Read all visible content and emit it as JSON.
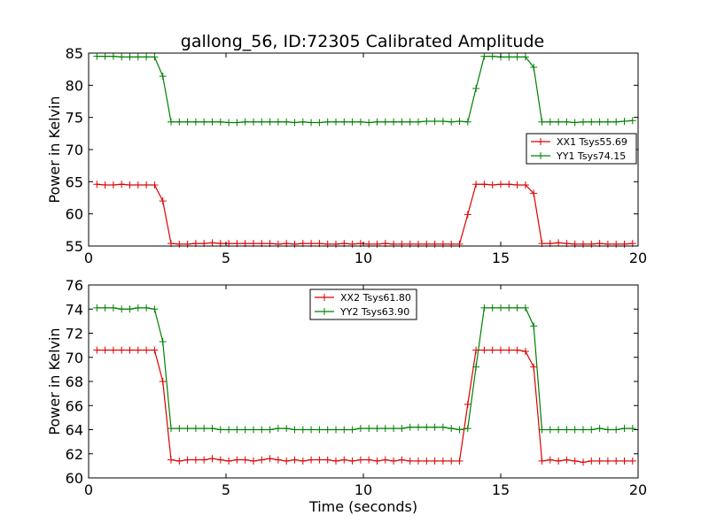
{
  "figure": {
    "title": "gallong_56, ID:72305 Calibrated Amplitude"
  },
  "chart_data": [
    {
      "type": "line",
      "title": "gallong_56, ID:72305 Calibrated Amplitude",
      "xlabel": "",
      "ylabel": "Power in Kelvin",
      "xlim": [
        0,
        20
      ],
      "ylim": [
        55,
        85
      ],
      "x_ticks": [
        "0",
        "5",
        "10",
        "15",
        "20"
      ],
      "y_ticks": [
        "55",
        "60",
        "65",
        "70",
        "75",
        "80",
        "85"
      ],
      "grid": false,
      "legend_position": "center-right",
      "x": [
        0.3,
        0.6,
        0.9,
        1.2,
        1.5,
        1.8,
        2.1,
        2.4,
        2.7,
        3.0,
        3.3,
        3.6,
        3.9,
        4.2,
        4.5,
        4.8,
        5.1,
        5.4,
        5.7,
        6.0,
        6.3,
        6.6,
        6.9,
        7.2,
        7.5,
        7.8,
        8.1,
        8.4,
        8.7,
        9.0,
        9.3,
        9.6,
        9.9,
        10.2,
        10.5,
        10.8,
        11.1,
        11.4,
        11.7,
        12.0,
        12.3,
        12.6,
        12.9,
        13.2,
        13.5,
        13.8,
        14.1,
        14.4,
        14.7,
        15.0,
        15.3,
        15.6,
        15.9,
        16.2,
        16.5,
        16.8,
        17.1,
        17.4,
        17.7,
        18.0,
        18.3,
        18.6,
        18.9,
        19.2,
        19.5,
        19.8
      ],
      "series": [
        {
          "name": "XX1 Tsys55.69",
          "color": "#dd0000",
          "values": [
            64.6,
            64.5,
            64.5,
            64.6,
            64.5,
            64.5,
            64.5,
            64.5,
            62.0,
            55.4,
            55.3,
            55.3,
            55.4,
            55.4,
            55.5,
            55.4,
            55.4,
            55.4,
            55.4,
            55.4,
            55.4,
            55.4,
            55.3,
            55.4,
            55.3,
            55.4,
            55.4,
            55.4,
            55.3,
            55.3,
            55.4,
            55.3,
            55.4,
            55.3,
            55.3,
            55.4,
            55.3,
            55.3,
            55.3,
            55.3,
            55.3,
            55.3,
            55.3,
            55.3,
            55.3,
            59.9,
            64.6,
            64.6,
            64.5,
            64.6,
            64.6,
            64.5,
            64.5,
            63.2,
            55.4,
            55.4,
            55.5,
            55.4,
            55.3,
            55.3,
            55.3,
            55.4,
            55.3,
            55.3,
            55.3,
            55.4
          ]
        },
        {
          "name": "YY1 Tsys74.15",
          "color": "#008000",
          "values": [
            84.5,
            84.5,
            84.5,
            84.4,
            84.4,
            84.4,
            84.4,
            84.4,
            81.4,
            74.3,
            74.3,
            74.3,
            74.3,
            74.3,
            74.3,
            74.3,
            74.2,
            74.2,
            74.3,
            74.3,
            74.3,
            74.3,
            74.3,
            74.3,
            74.2,
            74.3,
            74.2,
            74.2,
            74.3,
            74.3,
            74.3,
            74.3,
            74.3,
            74.2,
            74.3,
            74.3,
            74.3,
            74.3,
            74.3,
            74.3,
            74.4,
            74.4,
            74.4,
            74.3,
            74.4,
            74.3,
            79.5,
            84.5,
            84.5,
            84.4,
            84.4,
            84.4,
            84.4,
            82.8,
            74.3,
            74.3,
            74.3,
            74.3,
            74.2,
            74.3,
            74.3,
            74.3,
            74.3,
            74.3,
            74.4,
            74.5
          ]
        }
      ]
    },
    {
      "type": "line",
      "title": "",
      "xlabel": "Time (seconds)",
      "ylabel": "Power in Kelvin",
      "xlim": [
        0,
        20
      ],
      "ylim": [
        60,
        76
      ],
      "x_ticks": [
        "0",
        "5",
        "10",
        "15",
        "20"
      ],
      "y_ticks": [
        "60",
        "62",
        "64",
        "66",
        "68",
        "70",
        "72",
        "74",
        "76"
      ],
      "grid": false,
      "legend_position": "top-center",
      "x": [
        0.3,
        0.6,
        0.9,
        1.2,
        1.5,
        1.8,
        2.1,
        2.4,
        2.7,
        3.0,
        3.3,
        3.6,
        3.9,
        4.2,
        4.5,
        4.8,
        5.1,
        5.4,
        5.7,
        6.0,
        6.3,
        6.6,
        6.9,
        7.2,
        7.5,
        7.8,
        8.1,
        8.4,
        8.7,
        9.0,
        9.3,
        9.6,
        9.9,
        10.2,
        10.5,
        10.8,
        11.1,
        11.4,
        11.7,
        12.0,
        12.3,
        12.6,
        12.9,
        13.2,
        13.5,
        13.8,
        14.1,
        14.4,
        14.7,
        15.0,
        15.3,
        15.6,
        15.9,
        16.2,
        16.5,
        16.8,
        17.1,
        17.4,
        17.7,
        18.0,
        18.3,
        18.6,
        18.9,
        19.2,
        19.5,
        19.8
      ],
      "series": [
        {
          "name": "XX2 Tsys61.80",
          "color": "#dd0000",
          "values": [
            70.6,
            70.6,
            70.6,
            70.6,
            70.6,
            70.6,
            70.6,
            70.6,
            68.0,
            61.5,
            61.4,
            61.5,
            61.5,
            61.5,
            61.6,
            61.5,
            61.4,
            61.5,
            61.5,
            61.4,
            61.5,
            61.6,
            61.5,
            61.4,
            61.5,
            61.4,
            61.5,
            61.5,
            61.5,
            61.4,
            61.5,
            61.4,
            61.5,
            61.5,
            61.4,
            61.5,
            61.4,
            61.5,
            61.4,
            61.4,
            61.4,
            61.4,
            61.4,
            61.4,
            61.4,
            66.1,
            70.6,
            70.6,
            70.6,
            70.6,
            70.6,
            70.6,
            70.5,
            69.2,
            61.4,
            61.5,
            61.4,
            61.5,
            61.4,
            61.3,
            61.4,
            61.4,
            61.4,
            61.4,
            61.4,
            61.4
          ]
        },
        {
          "name": "YY2 Tsys63.90",
          "color": "#008000",
          "values": [
            74.1,
            74.1,
            74.1,
            74.0,
            74.0,
            74.1,
            74.1,
            74.0,
            71.3,
            64.1,
            64.1,
            64.1,
            64.1,
            64.1,
            64.1,
            64.0,
            64.0,
            64.0,
            64.0,
            64.0,
            64.0,
            64.0,
            64.1,
            64.1,
            64.0,
            64.0,
            64.0,
            64.0,
            64.0,
            64.0,
            64.0,
            64.0,
            64.1,
            64.1,
            64.1,
            64.1,
            64.1,
            64.1,
            64.2,
            64.2,
            64.2,
            64.2,
            64.2,
            64.1,
            64.0,
            64.1,
            69.2,
            74.1,
            74.1,
            74.1,
            74.1,
            74.1,
            74.1,
            72.6,
            64.0,
            64.0,
            64.0,
            64.0,
            64.0,
            64.0,
            64.0,
            64.1,
            64.0,
            64.0,
            64.1,
            64.1
          ]
        }
      ]
    }
  ]
}
